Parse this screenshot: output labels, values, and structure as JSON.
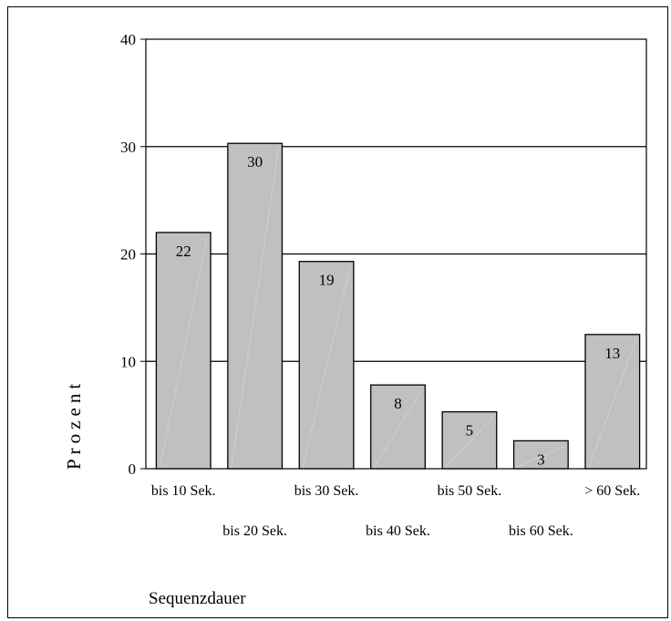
{
  "chart_data": {
    "type": "bar",
    "categories": [
      "bis 10 Sek.",
      "bis 20 Sek.",
      "bis 30 Sek.",
      "bis 40 Sek.",
      "bis 50 Sek.",
      "bis 60 Sek.",
      "> 60 Sek."
    ],
    "values": [
      22,
      30.3,
      19.3,
      7.8,
      5.3,
      2.6,
      12.5
    ],
    "data_labels": [
      "22",
      "30",
      "19",
      "8",
      "5",
      "3",
      "13"
    ],
    "ylabel": "Prozent",
    "xlabel": "Sequenzdauer",
    "ylim": [
      0,
      40
    ],
    "yticks": [
      0,
      10,
      20,
      30,
      40
    ],
    "grid": "horizontal",
    "colors": {
      "bar_fill": "#c0c0c0",
      "bar_stroke": "#000000"
    }
  }
}
